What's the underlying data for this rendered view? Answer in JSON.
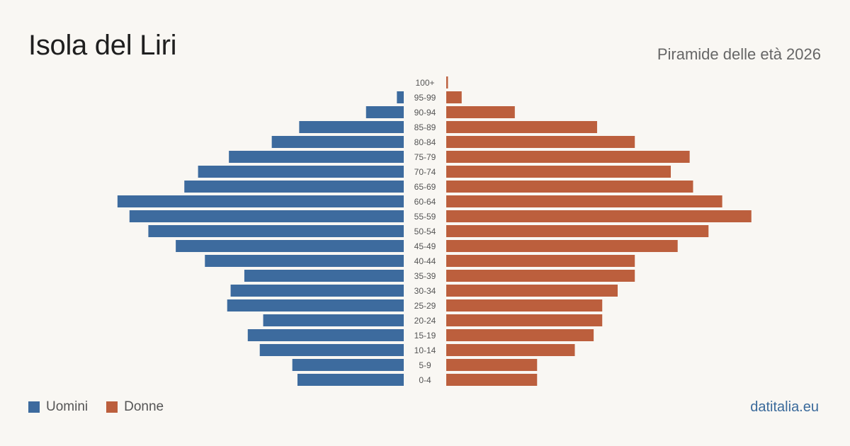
{
  "header": {
    "title": "Isola del Liri",
    "subtitle": "Piramide delle età 2026"
  },
  "legend": {
    "items": [
      {
        "label": "Uomini",
        "color": "#3d6b9e"
      },
      {
        "label": "Donne",
        "color": "#bc5f3d"
      }
    ]
  },
  "footer": {
    "source": "datitalia.eu"
  },
  "chart_data": {
    "type": "bar",
    "orientation": "horizontal",
    "layout": "population-pyramid",
    "categories": [
      "100+",
      "95-99",
      "90-94",
      "85-89",
      "80-84",
      "75-79",
      "70-74",
      "65-69",
      "60-64",
      "55-59",
      "50-54",
      "45-49",
      "40-44",
      "35-39",
      "30-34",
      "25-29",
      "20-24",
      "15-19",
      "10-14",
      "5-9",
      "0-4"
    ],
    "series": [
      {
        "name": "Uomini",
        "color": "#3d6b9e",
        "side": "left",
        "values": [
          0,
          4,
          22,
          61,
          77,
          102,
          120,
          128,
          167,
          160,
          149,
          133,
          116,
          93,
          101,
          103,
          82,
          91,
          84,
          65,
          62
        ]
      },
      {
        "name": "Donne",
        "color": "#bc5f3d",
        "side": "right",
        "values": [
          1,
          9,
          40,
          88,
          110,
          142,
          131,
          144,
          161,
          178,
          153,
          135,
          110,
          110,
          100,
          91,
          91,
          86,
          75,
          53,
          53
        ]
      }
    ],
    "grid": false,
    "legend_position": "bottom-left"
  }
}
